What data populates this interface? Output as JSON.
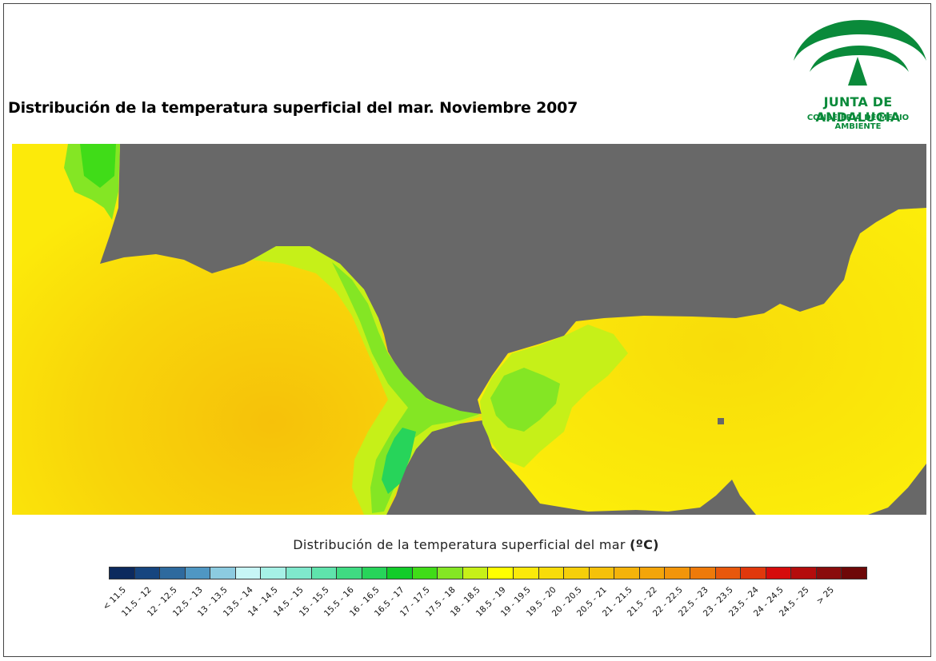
{
  "page": {
    "title": "Distribución de la temperatura superficial del mar. Noviembre 2007"
  },
  "logo": {
    "name": "JUNTA DE ANDALUCIA",
    "subtitle": "CONSEJERÍA DE MEDIO AMBIENTE",
    "color": "#0a8a3a"
  },
  "map": {
    "land_color": "#686868"
  },
  "legend": {
    "title": "Distribución de la temperatura superficial del mar",
    "unit": "(ºC)",
    "classes": [
      {
        "label": "< 11.5",
        "color": "#0c2a5e"
      },
      {
        "label": "11.5 - 12",
        "color": "#16457f"
      },
      {
        "label": "12 - 12.5",
        "color": "#2e6a9e"
      },
      {
        "label": "12.5 - 13",
        "color": "#4f97c3"
      },
      {
        "label": "13 - 13.5",
        "color": "#8ccbe0"
      },
      {
        "label": "13.5 - 14",
        "color": "#c7f6f6"
      },
      {
        "label": "14 - 14.5",
        "color": "#a6f1e6"
      },
      {
        "label": "14.5 - 15",
        "color": "#7fe8cc"
      },
      {
        "label": "15 - 15.5",
        "color": "#5fe3ac"
      },
      {
        "label": "15.5 - 16",
        "color": "#3fdb82"
      },
      {
        "label": "16 - 16.5",
        "color": "#27d45a"
      },
      {
        "label": "16.5 - 17",
        "color": "#12cc2a"
      },
      {
        "label": "17 - 17.5",
        "color": "#40dc18"
      },
      {
        "label": "17.5 - 18",
        "color": "#84e624"
      },
      {
        "label": "18 - 18.5",
        "color": "#c6f018"
      },
      {
        "label": "18.5 - 19",
        "color": "#ffff00"
      },
      {
        "label": "19 - 19.5",
        "color": "#fbe90a"
      },
      {
        "label": "19.5 - 20",
        "color": "#f8dc0a"
      },
      {
        "label": "20 - 20.5",
        "color": "#f6cf0a"
      },
      {
        "label": "20.5 - 21",
        "color": "#f5c10a"
      },
      {
        "label": "21 - 21.5",
        "color": "#f4b30a"
      },
      {
        "label": "21.5 - 22",
        "color": "#f3a50a"
      },
      {
        "label": "22 - 22.5",
        "color": "#f2950a"
      },
      {
        "label": "22.5 - 23",
        "color": "#ee7a0a"
      },
      {
        "label": "23 - 23.5",
        "color": "#e8580c"
      },
      {
        "label": "23.5 - 24",
        "color": "#e0380c"
      },
      {
        "label": "24 - 24.5",
        "color": "#d60c0c"
      },
      {
        "label": "24.5 - 25",
        "color": "#b40c0c"
      },
      {
        "label": "> 25",
        "color": "#8a0c0c"
      },
      {
        "label": "",
        "color": "#6e0808"
      }
    ]
  }
}
